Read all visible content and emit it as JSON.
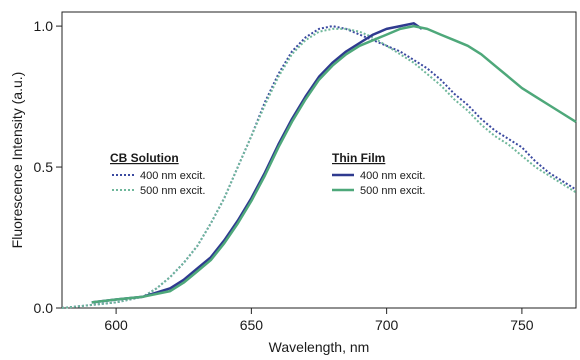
{
  "chart_data": {
    "type": "line",
    "title": "",
    "xlabel": "Wavelength, nm",
    "ylabel": "Fluorescence Intensity (a.u.)",
    "xlim": [
      580,
      770
    ],
    "ylim": [
      0.0,
      1.05
    ],
    "x_ticks": [
      600,
      650,
      700,
      750
    ],
    "y_ticks": [
      0.0,
      0.5,
      1.0
    ],
    "y_tick_labels": [
      "0.0",
      "0.5",
      "1.0"
    ],
    "grid": false,
    "legend_groups": [
      {
        "title": "CB Solution",
        "placement": "middle-left",
        "entries": [
          "400 nm excit.",
          "500 nm excit."
        ]
      },
      {
        "title": "Thin Film",
        "placement": "middle-center",
        "entries": [
          "400 nm excit.",
          "500 nm excit."
        ]
      }
    ],
    "series": [
      {
        "name": "400 nm excit.",
        "group": "CB Solution",
        "color": "#3b4aa0",
        "style": "dotted",
        "x": [
          580,
          590,
          600,
          610,
          615,
          620,
          625,
          630,
          635,
          640,
          645,
          650,
          655,
          660,
          665,
          670,
          675,
          680,
          685,
          690,
          695,
          700,
          705,
          710,
          715,
          720,
          725,
          730,
          735,
          740,
          745,
          750,
          755,
          760,
          765,
          770
        ],
        "y": [
          0.0,
          0.01,
          0.02,
          0.04,
          0.07,
          0.11,
          0.16,
          0.22,
          0.3,
          0.39,
          0.5,
          0.61,
          0.73,
          0.83,
          0.91,
          0.96,
          0.99,
          1.0,
          0.99,
          0.97,
          0.95,
          0.93,
          0.91,
          0.88,
          0.85,
          0.81,
          0.76,
          0.72,
          0.67,
          0.63,
          0.6,
          0.57,
          0.52,
          0.48,
          0.45,
          0.42
        ]
      },
      {
        "name": "500 nm excit.",
        "group": "CB Solution",
        "color": "#6fb79b",
        "style": "dotted",
        "x": [
          580,
          590,
          600,
          610,
          615,
          620,
          625,
          630,
          635,
          640,
          645,
          650,
          655,
          660,
          665,
          670,
          675,
          680,
          685,
          690,
          695,
          700,
          705,
          710,
          715,
          720,
          725,
          730,
          735,
          740,
          745,
          750,
          755,
          760,
          765,
          770
        ],
        "y": [
          0.0,
          0.01,
          0.02,
          0.04,
          0.07,
          0.11,
          0.16,
          0.22,
          0.3,
          0.39,
          0.5,
          0.61,
          0.72,
          0.82,
          0.9,
          0.95,
          0.98,
          0.99,
          0.99,
          0.98,
          0.96,
          0.93,
          0.9,
          0.87,
          0.83,
          0.79,
          0.74,
          0.7,
          0.65,
          0.61,
          0.58,
          0.54,
          0.5,
          0.47,
          0.44,
          0.41
        ]
      },
      {
        "name": "400 nm excit.",
        "group": "Thin Film",
        "color": "#2f3a8f",
        "style": "solid",
        "x": [
          591,
          600,
          610,
          620,
          625,
          630,
          635,
          640,
          645,
          650,
          655,
          660,
          665,
          670,
          675,
          680,
          685,
          690,
          695,
          700,
          705,
          710,
          713
        ],
        "y": [
          0.02,
          0.03,
          0.04,
          0.07,
          0.1,
          0.14,
          0.18,
          0.24,
          0.31,
          0.39,
          0.48,
          0.58,
          0.67,
          0.75,
          0.82,
          0.87,
          0.91,
          0.94,
          0.97,
          0.99,
          1.0,
          1.01,
          0.99
        ]
      },
      {
        "name": "500 nm excit.",
        "group": "Thin Film",
        "color": "#4ea87a",
        "style": "solid",
        "x": [
          591,
          600,
          610,
          620,
          625,
          630,
          635,
          640,
          645,
          650,
          655,
          660,
          665,
          670,
          675,
          680,
          685,
          690,
          695,
          700,
          705,
          710,
          715,
          720,
          725,
          730,
          735,
          740,
          745,
          750,
          755,
          760,
          765,
          770
        ],
        "y": [
          0.02,
          0.03,
          0.04,
          0.06,
          0.09,
          0.13,
          0.17,
          0.23,
          0.3,
          0.38,
          0.47,
          0.57,
          0.66,
          0.74,
          0.81,
          0.86,
          0.9,
          0.93,
          0.95,
          0.97,
          0.99,
          1.0,
          0.99,
          0.97,
          0.95,
          0.93,
          0.9,
          0.86,
          0.82,
          0.78,
          0.75,
          0.72,
          0.69,
          0.66
        ]
      }
    ]
  }
}
